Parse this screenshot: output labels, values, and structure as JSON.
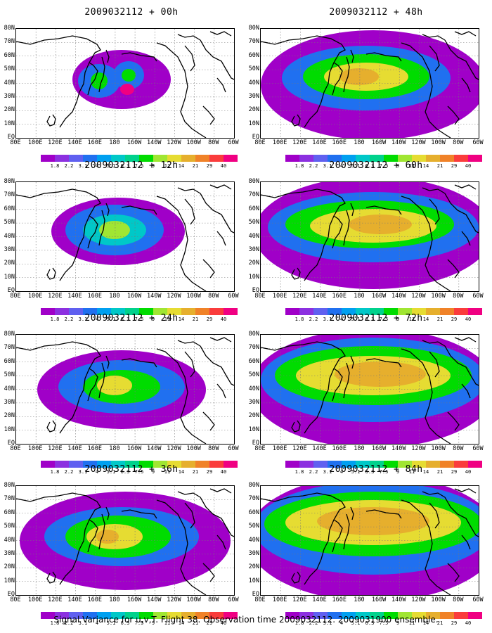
{
  "panels": [
    {
      "title": "2009032112 + 00h",
      "level": 0
    },
    {
      "title": "2009032112 + 48h",
      "level": 4
    },
    {
      "title": "2009032112 + 12h",
      "level": 1
    },
    {
      "title": "2009032112 + 60h",
      "level": 5
    },
    {
      "title": "2009032112 + 24h",
      "level": 2
    },
    {
      "title": "2009032112 + 72h",
      "level": 6
    },
    {
      "title": "2009032112 + 36h",
      "level": 3
    },
    {
      "title": "2009032112 + 84h",
      "level": 7
    }
  ],
  "lat_labels": [
    "80N",
    "70N",
    "60N",
    "50N",
    "40N",
    "30N",
    "20N",
    "10N",
    "EQ"
  ],
  "lon_labels": [
    "80E",
    "100E",
    "120E",
    "140E",
    "160E",
    "180",
    "160W",
    "140W",
    "120W",
    "100W",
    "80W",
    "60W"
  ],
  "colorbar": {
    "labels": [
      "1.8",
      "2.2",
      "3.1",
      "4",
      "5.1",
      "6.3",
      "7.5",
      "9",
      "11",
      "14",
      "21",
      "29",
      "40"
    ],
    "colors": [
      "#a000c8",
      "#8c30e0",
      "#6060f0",
      "#2070f0",
      "#00a0f0",
      "#00c8c8",
      "#00d28c",
      "#00dc00",
      "#a0e632",
      "#e6dc32",
      "#e6af2d",
      "#f08228",
      "#fa3c3c",
      "#f00082"
    ]
  },
  "caption": "Signal Variance for u,v,T. Flight 38. Observation time 2009032112. 2009031900 ensemble."
}
